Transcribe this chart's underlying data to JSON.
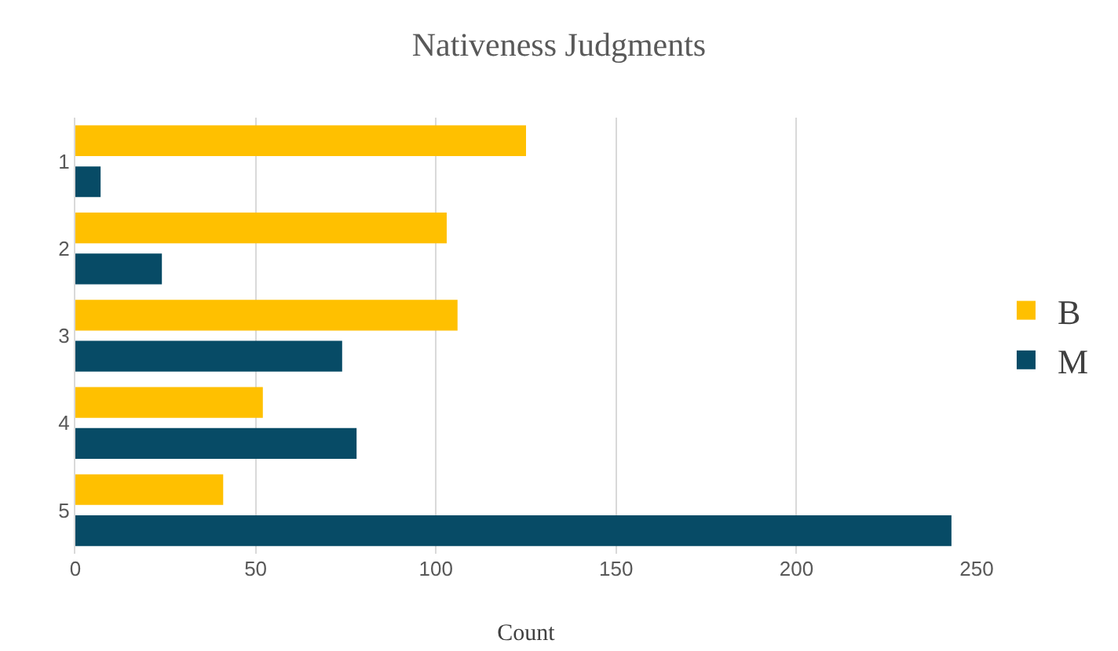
{
  "chart_data": {
    "type": "bar",
    "orientation": "horizontal",
    "title": "Nativeness Judgments",
    "xlabel": "Count",
    "categories": [
      "1",
      "2",
      "3",
      "4",
      "5"
    ],
    "series": [
      {
        "name": "B",
        "color": "#ffc000",
        "values": [
          125,
          103,
          106,
          52,
          41
        ]
      },
      {
        "name": "M",
        "color": "#074b66",
        "values": [
          7,
          24,
          74,
          78,
          243
        ]
      }
    ],
    "xlim": [
      0,
      250
    ],
    "xticks": [
      0,
      50,
      100,
      150,
      200,
      250
    ],
    "grid": "x",
    "legend": "right"
  }
}
